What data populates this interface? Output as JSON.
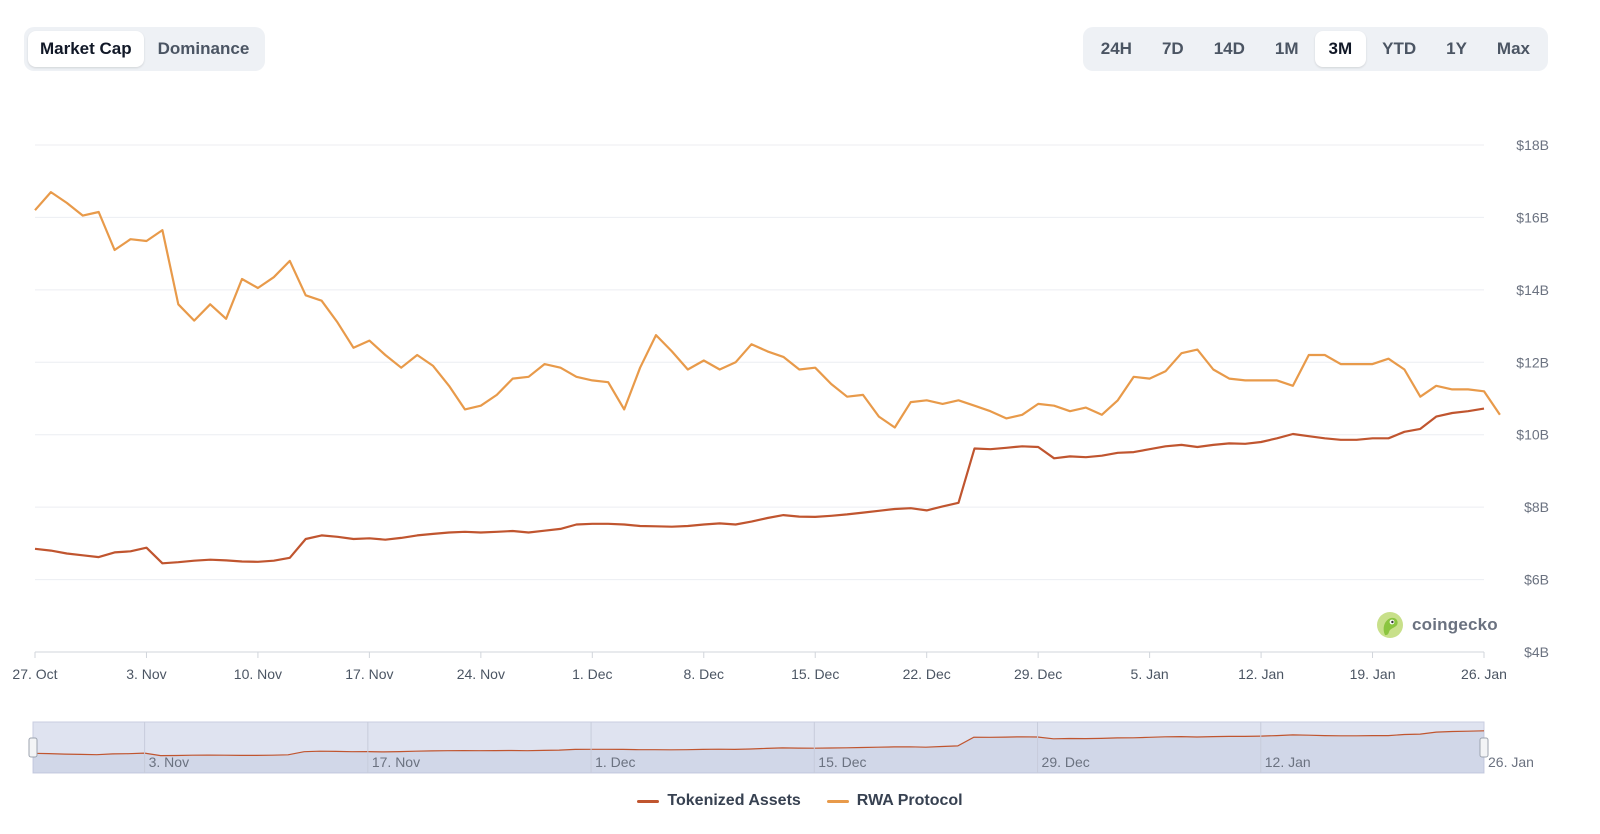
{
  "metric_toggle": {
    "options": [
      {
        "label": "Market Cap",
        "active": true
      },
      {
        "label": "Dominance",
        "active": false
      }
    ]
  },
  "range_toggle": {
    "options": [
      {
        "label": "24H",
        "active": false
      },
      {
        "label": "7D",
        "active": false
      },
      {
        "label": "14D",
        "active": false
      },
      {
        "label": "1M",
        "active": false
      },
      {
        "label": "3M",
        "active": true
      },
      {
        "label": "YTD",
        "active": false
      },
      {
        "label": "1Y",
        "active": false
      },
      {
        "label": "Max",
        "active": false
      }
    ]
  },
  "watermark": {
    "text": "coingecko",
    "icon": "coingecko-logo-icon"
  },
  "chart_data": {
    "type": "line",
    "title": "",
    "xlabel": "",
    "ylabel": "",
    "ylim": [
      4000000000,
      18000000000
    ],
    "yticks": [
      {
        "value": 18000000000,
        "label": "$18B"
      },
      {
        "value": 16000000000,
        "label": "$16B"
      },
      {
        "value": 14000000000,
        "label": "$14B"
      },
      {
        "value": 12000000000,
        "label": "$12B"
      },
      {
        "value": 10000000000,
        "label": "$10B"
      },
      {
        "value": 8000000000,
        "label": "$8B"
      },
      {
        "value": 6000000000,
        "label": "$6B"
      },
      {
        "value": 4000000000,
        "label": "$4B"
      }
    ],
    "x_range": [
      "2024-10-27",
      "2025-01-26"
    ],
    "xticks": [
      {
        "date": "2024-10-27",
        "label": "27. Oct"
      },
      {
        "date": "2024-11-03",
        "label": "3. Nov"
      },
      {
        "date": "2024-11-10",
        "label": "10. Nov"
      },
      {
        "date": "2024-11-17",
        "label": "17. Nov"
      },
      {
        "date": "2024-11-24",
        "label": "24. Nov"
      },
      {
        "date": "2024-12-01",
        "label": "1. Dec"
      },
      {
        "date": "2024-12-08",
        "label": "8. Dec"
      },
      {
        "date": "2024-12-15",
        "label": "15. Dec"
      },
      {
        "date": "2024-12-22",
        "label": "22. Dec"
      },
      {
        "date": "2024-12-29",
        "label": "29. Dec"
      },
      {
        "date": "2025-01-05",
        "label": "5. Jan"
      },
      {
        "date": "2025-01-12",
        "label": "12. Jan"
      },
      {
        "date": "2025-01-19",
        "label": "19. Jan"
      },
      {
        "date": "2025-01-26",
        "label": "26. Jan"
      }
    ],
    "navigator_ticks": [
      {
        "date": "2024-11-03",
        "label": "3. Nov"
      },
      {
        "date": "2024-11-17",
        "label": "17. Nov"
      },
      {
        "date": "2024-12-01",
        "label": "1. Dec"
      },
      {
        "date": "2024-12-15",
        "label": "15. Dec"
      },
      {
        "date": "2024-12-29",
        "label": "29. Dec"
      },
      {
        "date": "2025-01-12",
        "label": "12. Jan"
      },
      {
        "date": "2025-01-26",
        "label": "26. Jan"
      }
    ],
    "grid": true,
    "legend_position": "bottom-center",
    "series": [
      {
        "name": "Tokenized Assets",
        "color": "#c0552f",
        "points": [
          [
            "2024-10-27",
            6850000000.0
          ],
          [
            "2024-10-28",
            6800000000.0
          ],
          [
            "2024-10-29",
            6720000000.0
          ],
          [
            "2024-10-30",
            6670000000.0
          ],
          [
            "2024-10-31",
            6620000000.0
          ],
          [
            "2024-11-01",
            6750000000.0
          ],
          [
            "2024-11-02",
            6780000000.0
          ],
          [
            "2024-11-03",
            6880000000.0
          ],
          [
            "2024-11-04",
            6450000000.0
          ],
          [
            "2024-11-05",
            6480000000.0
          ],
          [
            "2024-11-06",
            6520000000.0
          ],
          [
            "2024-11-07",
            6550000000.0
          ],
          [
            "2024-11-08",
            6530000000.0
          ],
          [
            "2024-11-09",
            6500000000.0
          ],
          [
            "2024-11-10",
            6490000000.0
          ],
          [
            "2024-11-11",
            6520000000.0
          ],
          [
            "2024-11-12",
            6600000000.0
          ],
          [
            "2024-11-13",
            7120000000.0
          ],
          [
            "2024-11-14",
            7220000000.0
          ],
          [
            "2024-11-15",
            7180000000.0
          ],
          [
            "2024-11-16",
            7120000000.0
          ],
          [
            "2024-11-17",
            7140000000.0
          ],
          [
            "2024-11-18",
            7100000000.0
          ],
          [
            "2024-11-19",
            7150000000.0
          ],
          [
            "2024-11-20",
            7220000000.0
          ],
          [
            "2024-11-21",
            7260000000.0
          ],
          [
            "2024-11-22",
            7300000000.0
          ],
          [
            "2024-11-23",
            7320000000.0
          ],
          [
            "2024-11-24",
            7300000000.0
          ],
          [
            "2024-11-25",
            7320000000.0
          ],
          [
            "2024-11-26",
            7340000000.0
          ],
          [
            "2024-11-27",
            7300000000.0
          ],
          [
            "2024-11-28",
            7350000000.0
          ],
          [
            "2024-11-29",
            7400000000.0
          ],
          [
            "2024-11-30",
            7520000000.0
          ],
          [
            "2024-12-01",
            7540000000.0
          ],
          [
            "2024-12-02",
            7540000000.0
          ],
          [
            "2024-12-03",
            7520000000.0
          ],
          [
            "2024-12-04",
            7480000000.0
          ],
          [
            "2024-12-05",
            7470000000.0
          ],
          [
            "2024-12-06",
            7460000000.0
          ],
          [
            "2024-12-07",
            7480000000.0
          ],
          [
            "2024-12-08",
            7520000000.0
          ],
          [
            "2024-12-09",
            7550000000.0
          ],
          [
            "2024-12-10",
            7520000000.0
          ],
          [
            "2024-12-11",
            7600000000.0
          ],
          [
            "2024-12-12",
            7700000000.0
          ],
          [
            "2024-12-13",
            7780000000.0
          ],
          [
            "2024-12-14",
            7740000000.0
          ],
          [
            "2024-12-15",
            7730000000.0
          ],
          [
            "2024-12-16",
            7760000000.0
          ],
          [
            "2024-12-17",
            7800000000.0
          ],
          [
            "2024-12-18",
            7850000000.0
          ],
          [
            "2024-12-19",
            7900000000.0
          ],
          [
            "2024-12-20",
            7950000000.0
          ],
          [
            "2024-12-21",
            7970000000.0
          ],
          [
            "2024-12-22",
            7910000000.0
          ],
          [
            "2024-12-23",
            8020000000.0
          ],
          [
            "2024-12-24",
            8120000000.0
          ],
          [
            "2024-12-25",
            9620000000.0
          ],
          [
            "2024-12-26",
            9600000000.0
          ],
          [
            "2024-12-27",
            9640000000.0
          ],
          [
            "2024-12-28",
            9680000000.0
          ],
          [
            "2024-12-29",
            9660000000.0
          ],
          [
            "2024-12-30",
            9350000000.0
          ],
          [
            "2024-12-31",
            9400000000.0
          ],
          [
            "2025-01-01",
            9380000000.0
          ],
          [
            "2025-01-02",
            9420000000.0
          ],
          [
            "2025-01-03",
            9500000000.0
          ],
          [
            "2025-01-04",
            9520000000.0
          ],
          [
            "2025-01-05",
            9600000000.0
          ],
          [
            "2025-01-06",
            9680000000.0
          ],
          [
            "2025-01-07",
            9720000000.0
          ],
          [
            "2025-01-08",
            9660000000.0
          ],
          [
            "2025-01-09",
            9720000000.0
          ],
          [
            "2025-01-10",
            9760000000.0
          ],
          [
            "2025-01-11",
            9750000000.0
          ],
          [
            "2025-01-12",
            9800000000.0
          ],
          [
            "2025-01-13",
            9900000000.0
          ],
          [
            "2025-01-14",
            10020000000.0
          ],
          [
            "2025-01-15",
            9960000000.0
          ],
          [
            "2025-01-16",
            9900000000.0
          ],
          [
            "2025-01-17",
            9860000000.0
          ],
          [
            "2025-01-18",
            9860000000.0
          ],
          [
            "2025-01-19",
            9900000000.0
          ],
          [
            "2025-01-20",
            9900000000.0
          ],
          [
            "2025-01-21",
            10080000000.0
          ],
          [
            "2025-01-22",
            10160000000.0
          ],
          [
            "2025-01-23",
            10500000000.0
          ],
          [
            "2025-01-24",
            10600000000.0
          ],
          [
            "2025-01-25",
            10650000000.0
          ],
          [
            "2025-01-26",
            10720000000.0
          ]
        ]
      },
      {
        "name": "RWA Protocol",
        "color": "#e89a4a",
        "points": [
          [
            "2024-10-27",
            16200000000.0
          ],
          [
            "2024-10-28",
            16700000000.0
          ],
          [
            "2024-10-29",
            16400000000.0
          ],
          [
            "2024-10-30",
            16050000000.0
          ],
          [
            "2024-10-31",
            16150000000.0
          ],
          [
            "2024-11-01",
            15100000000.0
          ],
          [
            "2024-11-02",
            15400000000.0
          ],
          [
            "2024-11-03",
            15350000000.0
          ],
          [
            "2024-11-04",
            15650000000.0
          ],
          [
            "2024-11-05",
            13600000000.0
          ],
          [
            "2024-11-06",
            13150000000.0
          ],
          [
            "2024-11-07",
            13600000000.0
          ],
          [
            "2024-11-08",
            13200000000.0
          ],
          [
            "2024-11-09",
            14300000000.0
          ],
          [
            "2024-11-10",
            14050000000.0
          ],
          [
            "2024-11-11",
            14350000000.0
          ],
          [
            "2024-11-12",
            14800000000.0
          ],
          [
            "2024-11-13",
            13850000000.0
          ],
          [
            "2024-11-14",
            13700000000.0
          ],
          [
            "2024-11-15",
            13100000000.0
          ],
          [
            "2024-11-16",
            12400000000.0
          ],
          [
            "2024-11-17",
            12600000000.0
          ],
          [
            "2024-11-18",
            12200000000.0
          ],
          [
            "2024-11-19",
            11850000000.0
          ],
          [
            "2024-11-20",
            12200000000.0
          ],
          [
            "2024-11-21",
            11900000000.0
          ],
          [
            "2024-11-22",
            11350000000.0
          ],
          [
            "2024-11-23",
            10700000000.0
          ],
          [
            "2024-11-24",
            10800000000.0
          ],
          [
            "2024-11-25",
            11100000000.0
          ],
          [
            "2024-11-26",
            11550000000.0
          ],
          [
            "2024-11-27",
            11600000000.0
          ],
          [
            "2024-11-28",
            11950000000.0
          ],
          [
            "2024-11-29",
            11850000000.0
          ],
          [
            "2024-11-30",
            11600000000.0
          ],
          [
            "2024-12-01",
            11500000000.0
          ],
          [
            "2024-12-02",
            11450000000.0
          ],
          [
            "2024-12-03",
            10700000000.0
          ],
          [
            "2024-12-04",
            11850000000.0
          ],
          [
            "2024-12-05",
            12750000000.0
          ],
          [
            "2024-12-06",
            12300000000.0
          ],
          [
            "2024-12-07",
            11800000000.0
          ],
          [
            "2024-12-08",
            12050000000.0
          ],
          [
            "2024-12-09",
            11800000000.0
          ],
          [
            "2024-12-10",
            12000000000.0
          ],
          [
            "2024-12-11",
            12500000000.0
          ],
          [
            "2024-12-12",
            12300000000.0
          ],
          [
            "2024-12-13",
            12150000000.0
          ],
          [
            "2024-12-14",
            11800000000.0
          ],
          [
            "2024-12-15",
            11850000000.0
          ],
          [
            "2024-12-16",
            11400000000.0
          ],
          [
            "2024-12-17",
            11050000000.0
          ],
          [
            "2024-12-18",
            11100000000.0
          ],
          [
            "2024-12-19",
            10500000000.0
          ],
          [
            "2024-12-20",
            10200000000.0
          ],
          [
            "2024-12-21",
            10900000000.0
          ],
          [
            "2024-12-22",
            10950000000.0
          ],
          [
            "2024-12-23",
            10850000000.0
          ],
          [
            "2024-12-24",
            10950000000.0
          ],
          [
            "2024-12-25",
            10800000000.0
          ],
          [
            "2024-12-26",
            10650000000.0
          ],
          [
            "2024-12-27",
            10450000000.0
          ],
          [
            "2024-12-28",
            10550000000.0
          ],
          [
            "2024-12-29",
            10850000000.0
          ],
          [
            "2024-12-30",
            10800000000.0
          ],
          [
            "2024-12-31",
            10650000000.0
          ],
          [
            "2025-01-01",
            10750000000.0
          ],
          [
            "2025-01-02",
            10550000000.0
          ],
          [
            "2025-01-03",
            10950000000.0
          ],
          [
            "2025-01-04",
            11600000000.0
          ],
          [
            "2025-01-05",
            11550000000.0
          ],
          [
            "2025-01-06",
            11750000000.0
          ],
          [
            "2025-01-07",
            12250000000.0
          ],
          [
            "2025-01-08",
            12350000000.0
          ],
          [
            "2025-01-09",
            11800000000.0
          ],
          [
            "2025-01-10",
            11550000000.0
          ],
          [
            "2025-01-11",
            11500000000.0
          ],
          [
            "2025-01-12",
            11500000000.0
          ],
          [
            "2025-01-13",
            11500000000.0
          ],
          [
            "2025-01-14",
            11350000000.0
          ],
          [
            "2025-01-15",
            12200000000.0
          ],
          [
            "2025-01-16",
            12200000000.0
          ],
          [
            "2025-01-17",
            11950000000.0
          ],
          [
            "2025-01-18",
            11950000000.0
          ],
          [
            "2025-01-19",
            11950000000.0
          ],
          [
            "2025-01-20",
            12100000000.0
          ],
          [
            "2025-01-21",
            11800000000.0
          ],
          [
            "2025-01-22",
            11050000000.0
          ],
          [
            "2025-01-23",
            11350000000.0
          ],
          [
            "2025-01-24",
            11250000000.0
          ],
          [
            "2025-01-25",
            11250000000.0
          ],
          [
            "2025-01-26",
            11200000000.0
          ],
          [
            "2025-01-27",
            10550000000.0
          ]
        ]
      }
    ]
  }
}
